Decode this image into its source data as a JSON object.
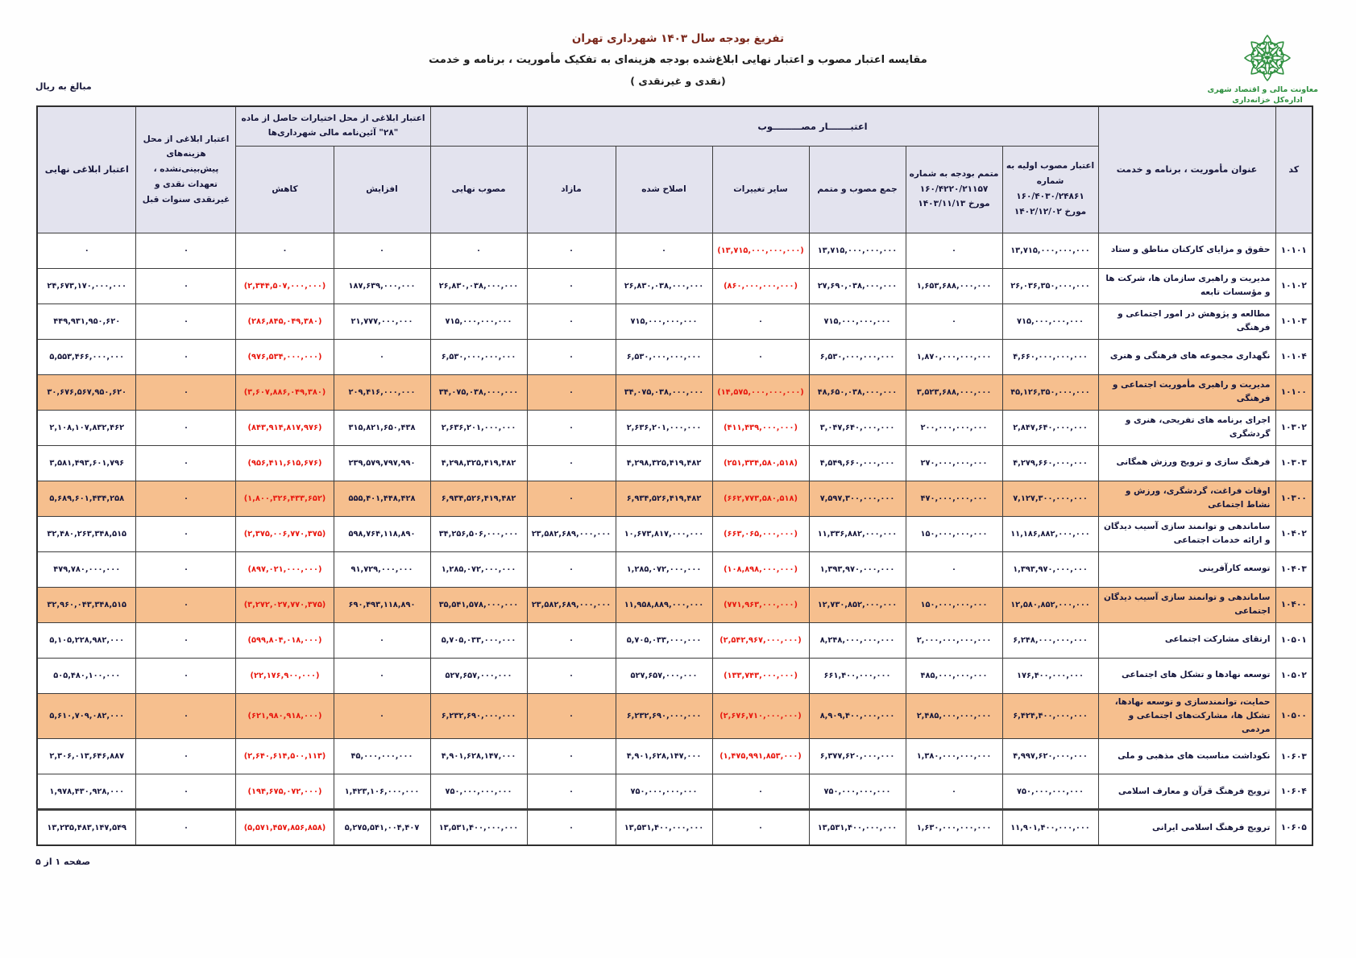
{
  "page": {
    "title_line1": "تفریغ بودجه سال ۱۴۰۳ شهرداری تهران",
    "title_line2": "مقایسه اعتبار مصوب و اعتبار نهایی ابلاغ‌شده بودجه هزینه‌ای به تفکیک مأموریت ، برنامه و خدمت",
    "title_line3": "(نقدی و غیرنقدی )",
    "amounts_note": "مبالغ به ریال",
    "footer_page": "صفحه ۱ از ۵"
  },
  "logo": {
    "org_line1": "معاونت مالی و اقتصاد شهری",
    "org_line2": "اداره‌کل خزانه‌داری",
    "color": "#2e8f3f"
  },
  "colors": {
    "header_bg": "#e3e3ee",
    "highlight_row": "#f6bf8e",
    "negative_text": "#e8170e",
    "title_accent": "#7a271b"
  },
  "table": {
    "group_headers": {
      "approved": "اعتبـــــــار مصـــــــــوب",
      "article28": "اعتبار ابلاغی از محل اختیارات حاصل از ماده \"۲۸\" آئین‌نامه مالی شهرداری‌ها"
    },
    "columns": {
      "code": "کد",
      "title": "عنوان مأموریت ، برنامه و خدمت",
      "initial_approved": "اعتبار مصوب اولیه به شماره ۱۶۰/۴۰۳۰/۲۴۸۶۱ مورخ ۱۴۰۲/۱۲/۰۲",
      "supplement": "متمم بودجه به شماره ۱۶۰/۴۲۲۰/۲۱۱۵۷ مورخ ۱۴۰۳/۱۱/۱۳",
      "sum_approved_supplement": "جمع مصوب و متمم",
      "other_changes": "سایر تغییرات",
      "corrected": "اصلاح شده",
      "surplus": "مازاد",
      "final_approved": "مصوب نهایی",
      "increase": "افزایش",
      "decrease": "کاهش",
      "prior_years": "اعتبار ابلاغی از محل هزینه‌های پیش‌بینی‌نشده ، تعهدات نقدی و غیرنقدی سنوات قبل",
      "final_announced": "اعتبار ابلاغی نهایی"
    },
    "rows": [
      {
        "code": "۱۰۱۰۱",
        "title": "حقوق و مزایای کارکنان مناطق و ستاد",
        "highlight": false,
        "cells": [
          "۱۳,۷۱۵,۰۰۰,۰۰۰,۰۰۰",
          "۰",
          "۱۳,۷۱۵,۰۰۰,۰۰۰,۰۰۰",
          "(۱۳,۷۱۵,۰۰۰,۰۰۰,۰۰۰)",
          "۰",
          "۰",
          "۰",
          "۰",
          "۰",
          "۰",
          "۰"
        ]
      },
      {
        "code": "۱۰۱۰۲",
        "title": "مدیریت و راهبری سازمان ها، شرکت ها و مؤسسات تابعه",
        "highlight": false,
        "cells": [
          "۲۶,۰۳۶,۳۵۰,۰۰۰,۰۰۰",
          "۱,۶۵۳,۶۸۸,۰۰۰,۰۰۰",
          "۲۷,۶۹۰,۰۳۸,۰۰۰,۰۰۰",
          "(۸۶۰,۰۰۰,۰۰۰,۰۰۰)",
          "۲۶,۸۳۰,۰۳۸,۰۰۰,۰۰۰",
          "۰",
          "۲۶,۸۳۰,۰۳۸,۰۰۰,۰۰۰",
          "۱۸۷,۶۳۹,۰۰۰,۰۰۰",
          "(۲,۳۴۴,۵۰۷,۰۰۰,۰۰۰)",
          "۰",
          "۲۴,۶۷۳,۱۷۰,۰۰۰,۰۰۰"
        ]
      },
      {
        "code": "۱۰۱۰۳",
        "title": "مطالعه و پژوهش در امور اجتماعی و فرهنگی",
        "highlight": false,
        "cells": [
          "۷۱۵,۰۰۰,۰۰۰,۰۰۰",
          "۰",
          "۷۱۵,۰۰۰,۰۰۰,۰۰۰",
          "۰",
          "۷۱۵,۰۰۰,۰۰۰,۰۰۰",
          "۰",
          "۷۱۵,۰۰۰,۰۰۰,۰۰۰",
          "۲۱,۷۷۷,۰۰۰,۰۰۰",
          "(۲۸۶,۸۴۵,۰۴۹,۳۸۰)",
          "۰",
          "۴۴۹,۹۳۱,۹۵۰,۶۲۰"
        ]
      },
      {
        "code": "۱۰۱۰۴",
        "title": "نگهداری مجموعه های فرهنگی و هنری",
        "highlight": false,
        "cells": [
          "۴,۶۶۰,۰۰۰,۰۰۰,۰۰۰",
          "۱,۸۷۰,۰۰۰,۰۰۰,۰۰۰",
          "۶,۵۳۰,۰۰۰,۰۰۰,۰۰۰",
          "۰",
          "۶,۵۳۰,۰۰۰,۰۰۰,۰۰۰",
          "۰",
          "۶,۵۳۰,۰۰۰,۰۰۰,۰۰۰",
          "۰",
          "(۹۷۶,۵۳۴,۰۰۰,۰۰۰)",
          "۰",
          "۵,۵۵۳,۴۶۶,۰۰۰,۰۰۰"
        ]
      },
      {
        "code": "۱۰۱۰۰",
        "title": "مدیریت و راهبری مأموریت اجتماعی و فرهنگی",
        "highlight": true,
        "cells": [
          "۴۵,۱۲۶,۳۵۰,۰۰۰,۰۰۰",
          "۳,۵۲۳,۶۸۸,۰۰۰,۰۰۰",
          "۴۸,۶۵۰,۰۳۸,۰۰۰,۰۰۰",
          "(۱۴,۵۷۵,۰۰۰,۰۰۰,۰۰۰)",
          "۳۴,۰۷۵,۰۳۸,۰۰۰,۰۰۰",
          "۰",
          "۳۴,۰۷۵,۰۳۸,۰۰۰,۰۰۰",
          "۲۰۹,۴۱۶,۰۰۰,۰۰۰",
          "(۳,۶۰۷,۸۸۶,۰۴۹,۳۸۰)",
          "۰",
          "۳۰,۶۷۶,۵۶۷,۹۵۰,۶۲۰"
        ]
      },
      {
        "code": "۱۰۳۰۲",
        "title": "اجرای برنامه های تفریحی، هنری و گردشگری",
        "highlight": false,
        "cells": [
          "۲,۸۴۷,۶۴۰,۰۰۰,۰۰۰",
          "۲۰۰,۰۰۰,۰۰۰,۰۰۰",
          "۳,۰۴۷,۶۴۰,۰۰۰,۰۰۰",
          "(۴۱۱,۴۳۹,۰۰۰,۰۰۰)",
          "۲,۶۳۶,۲۰۱,۰۰۰,۰۰۰",
          "۰",
          "۲,۶۳۶,۲۰۱,۰۰۰,۰۰۰",
          "۳۱۵,۸۲۱,۶۵۰,۴۳۸",
          "(۸۴۳,۹۱۴,۸۱۷,۹۷۶)",
          "۰",
          "۲,۱۰۸,۱۰۷,۸۳۲,۴۶۲"
        ]
      },
      {
        "code": "۱۰۳۰۳",
        "title": "فرهنگ سازی و ترویج ورزش همگانی",
        "highlight": false,
        "cells": [
          "۴,۲۷۹,۶۶۰,۰۰۰,۰۰۰",
          "۲۷۰,۰۰۰,۰۰۰,۰۰۰",
          "۴,۵۴۹,۶۶۰,۰۰۰,۰۰۰",
          "(۲۵۱,۳۳۴,۵۸۰,۵۱۸)",
          "۴,۲۹۸,۳۲۵,۴۱۹,۴۸۲",
          "۰",
          "۴,۲۹۸,۳۲۵,۴۱۹,۴۸۲",
          "۲۳۹,۵۷۹,۷۹۷,۹۹۰",
          "(۹۵۶,۴۱۱,۶۱۵,۶۷۶)",
          "۰",
          "۳,۵۸۱,۴۹۳,۶۰۱,۷۹۶"
        ]
      },
      {
        "code": "۱۰۳۰۰",
        "title": "اوقات فراغت، گردشگری، ورزش و نشاط اجتماعی",
        "highlight": true,
        "cells": [
          "۷,۱۲۷,۳۰۰,۰۰۰,۰۰۰",
          "۴۷۰,۰۰۰,۰۰۰,۰۰۰",
          "۷,۵۹۷,۳۰۰,۰۰۰,۰۰۰",
          "(۶۶۲,۷۷۳,۵۸۰,۵۱۸)",
          "۶,۹۳۴,۵۲۶,۴۱۹,۴۸۲",
          "۰",
          "۶,۹۳۴,۵۲۶,۴۱۹,۴۸۲",
          "۵۵۵,۴۰۱,۴۴۸,۴۲۸",
          "(۱,۸۰۰,۳۲۶,۴۳۳,۶۵۲)",
          "۰",
          "۵,۶۸۹,۶۰۱,۴۳۴,۲۵۸"
        ]
      },
      {
        "code": "۱۰۴۰۲",
        "title": "ساماندهی و توانمند سازی آسیب دیدگان و ارائه خدمات اجتماعی",
        "highlight": false,
        "cells": [
          "۱۱,۱۸۶,۸۸۲,۰۰۰,۰۰۰",
          "۱۵۰,۰۰۰,۰۰۰,۰۰۰",
          "۱۱,۳۳۶,۸۸۲,۰۰۰,۰۰۰",
          "(۶۶۳,۰۶۵,۰۰۰,۰۰۰)",
          "۱۰,۶۷۳,۸۱۷,۰۰۰,۰۰۰",
          "۲۳,۵۸۲,۶۸۹,۰۰۰,۰۰۰",
          "۳۴,۲۵۶,۵۰۶,۰۰۰,۰۰۰",
          "۵۹۸,۷۶۴,۱۱۸,۸۹۰",
          "(۲,۳۷۵,۰۰۶,۷۷۰,۳۷۵)",
          "۰",
          "۳۲,۴۸۰,۲۶۳,۳۴۸,۵۱۵"
        ]
      },
      {
        "code": "۱۰۴۰۳",
        "title": "توسعه کارآفرینی",
        "highlight": false,
        "cells": [
          "۱,۳۹۳,۹۷۰,۰۰۰,۰۰۰",
          "۰",
          "۱,۳۹۳,۹۷۰,۰۰۰,۰۰۰",
          "(۱۰۸,۸۹۸,۰۰۰,۰۰۰)",
          "۱,۲۸۵,۰۷۲,۰۰۰,۰۰۰",
          "۰",
          "۱,۲۸۵,۰۷۲,۰۰۰,۰۰۰",
          "۹۱,۷۲۹,۰۰۰,۰۰۰",
          "(۸۹۷,۰۲۱,۰۰۰,۰۰۰)",
          "۰",
          "۴۷۹,۷۸۰,۰۰۰,۰۰۰"
        ]
      },
      {
        "code": "۱۰۴۰۰",
        "title": "ساماندهی و توانمند سازی آسیب دیدگان اجتماعی",
        "highlight": true,
        "cells": [
          "۱۲,۵۸۰,۸۵۲,۰۰۰,۰۰۰",
          "۱۵۰,۰۰۰,۰۰۰,۰۰۰",
          "۱۲,۷۳۰,۸۵۲,۰۰۰,۰۰۰",
          "(۷۷۱,۹۶۳,۰۰۰,۰۰۰)",
          "۱۱,۹۵۸,۸۸۹,۰۰۰,۰۰۰",
          "۲۳,۵۸۲,۶۸۹,۰۰۰,۰۰۰",
          "۳۵,۵۴۱,۵۷۸,۰۰۰,۰۰۰",
          "۶۹۰,۴۹۳,۱۱۸,۸۹۰",
          "(۳,۲۷۲,۰۲۷,۷۷۰,۳۷۵)",
          "۰",
          "۳۲,۹۶۰,۰۴۳,۳۴۸,۵۱۵"
        ]
      },
      {
        "code": "۱۰۵۰۱",
        "title": "ارتقای مشارکت اجتماعی",
        "highlight": false,
        "cells": [
          "۶,۲۴۸,۰۰۰,۰۰۰,۰۰۰",
          "۲,۰۰۰,۰۰۰,۰۰۰,۰۰۰",
          "۸,۲۴۸,۰۰۰,۰۰۰,۰۰۰",
          "(۲,۵۴۲,۹۶۷,۰۰۰,۰۰۰)",
          "۵,۷۰۵,۰۳۳,۰۰۰,۰۰۰",
          "۰",
          "۵,۷۰۵,۰۳۳,۰۰۰,۰۰۰",
          "۰",
          "(۵۹۹,۸۰۴,۰۱۸,۰۰۰)",
          "۰",
          "۵,۱۰۵,۲۲۸,۹۸۲,۰۰۰"
        ]
      },
      {
        "code": "۱۰۵۰۲",
        "title": "توسعه نهادها و تشکل های اجتماعی",
        "highlight": false,
        "cells": [
          "۱۷۶,۴۰۰,۰۰۰,۰۰۰",
          "۴۸۵,۰۰۰,۰۰۰,۰۰۰",
          "۶۶۱,۴۰۰,۰۰۰,۰۰۰",
          "(۱۳۳,۷۴۳,۰۰۰,۰۰۰)",
          "۵۲۷,۶۵۷,۰۰۰,۰۰۰",
          "۰",
          "۵۲۷,۶۵۷,۰۰۰,۰۰۰",
          "۰",
          "(۲۲,۱۷۶,۹۰۰,۰۰۰)",
          "۰",
          "۵۰۵,۴۸۰,۱۰۰,۰۰۰"
        ]
      },
      {
        "code": "۱۰۵۰۰",
        "title": "حمایت، توانمندسازی و  توسعه نهادها، تشکل ها، مشارکت‌های اجتماعی و مردمی",
        "highlight": true,
        "cells": [
          "۶,۴۲۴,۴۰۰,۰۰۰,۰۰۰",
          "۲,۴۸۵,۰۰۰,۰۰۰,۰۰۰",
          "۸,۹۰۹,۴۰۰,۰۰۰,۰۰۰",
          "(۲,۶۷۶,۷۱۰,۰۰۰,۰۰۰)",
          "۶,۲۳۲,۶۹۰,۰۰۰,۰۰۰",
          "۰",
          "۶,۲۳۲,۶۹۰,۰۰۰,۰۰۰",
          "۰",
          "(۶۲۱,۹۸۰,۹۱۸,۰۰۰)",
          "۰",
          "۵,۶۱۰,۷۰۹,۰۸۲,۰۰۰"
        ]
      },
      {
        "code": "۱۰۶۰۳",
        "title": "نکوداشت مناسبت های مذهبی و ملی",
        "highlight": false,
        "cells": [
          "۴,۹۹۷,۶۲۰,۰۰۰,۰۰۰",
          "۱,۳۸۰,۰۰۰,۰۰۰,۰۰۰",
          "۶,۳۷۷,۶۲۰,۰۰۰,۰۰۰",
          "(۱,۴۷۵,۹۹۱,۸۵۳,۰۰۰)",
          "۴,۹۰۱,۶۲۸,۱۴۷,۰۰۰",
          "۰",
          "۴,۹۰۱,۶۲۸,۱۴۷,۰۰۰",
          "۴۵,۰۰۰,۰۰۰,۰۰۰",
          "(۲,۶۴۰,۶۱۴,۵۰۰,۱۱۳)",
          "۰",
          "۲,۳۰۶,۰۱۳,۶۴۶,۸۸۷"
        ]
      },
      {
        "code": "۱۰۶۰۴",
        "title": "ترویج فرهنگ قرآن و معارف اسلامی",
        "highlight": false,
        "cells": [
          "۷۵۰,۰۰۰,۰۰۰,۰۰۰",
          "۰",
          "۷۵۰,۰۰۰,۰۰۰,۰۰۰",
          "۰",
          "۷۵۰,۰۰۰,۰۰۰,۰۰۰",
          "۰",
          "۷۵۰,۰۰۰,۰۰۰,۰۰۰",
          "۱,۴۲۳,۱۰۶,۰۰۰,۰۰۰",
          "(۱۹۴,۶۷۵,۰۷۲,۰۰۰)",
          "۰",
          "۱,۹۷۸,۴۳۰,۹۲۸,۰۰۰"
        ]
      },
      {
        "code": "۱۰۶۰۵",
        "title": "ترویج فرهنگ اسلامی ایرانی",
        "highlight": false,
        "thick_top": true,
        "cells": [
          "۱۱,۹۰۱,۴۰۰,۰۰۰,۰۰۰",
          "۱,۶۳۰,۰۰۰,۰۰۰,۰۰۰",
          "۱۳,۵۳۱,۴۰۰,۰۰۰,۰۰۰",
          "۰",
          "۱۳,۵۳۱,۴۰۰,۰۰۰,۰۰۰",
          "۰",
          "۱۳,۵۳۱,۴۰۰,۰۰۰,۰۰۰",
          "۵,۲۷۵,۵۴۱,۰۰۴,۴۰۷",
          "(۵,۵۷۱,۴۵۷,۸۵۶,۸۵۸)",
          "۰",
          "۱۳,۲۳۵,۴۸۳,۱۴۷,۵۴۹"
        ]
      }
    ]
  }
}
